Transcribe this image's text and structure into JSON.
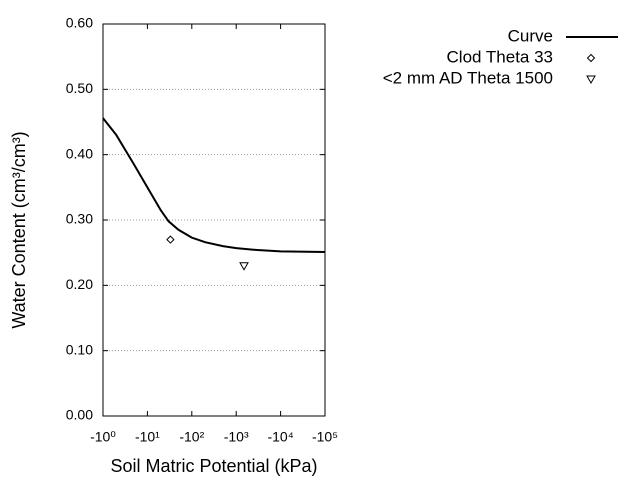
{
  "chart_data": {
    "type": "line",
    "xlabel": "Soil Matric Potential (kPa)",
    "ylabel": "Water Content (cm³/cm³)",
    "xscale": "log",
    "xlim": [
      1,
      100000
    ],
    "ylim": [
      0,
      0.6
    ],
    "xticks": [
      {
        "value": 1,
        "label": "-10⁰"
      },
      {
        "value": 10,
        "label": "-10¹"
      },
      {
        "value": 100,
        "label": "-10²"
      },
      {
        "value": 1000,
        "label": "-10³"
      },
      {
        "value": 10000,
        "label": "-10⁴"
      },
      {
        "value": 100000,
        "label": "-10⁵"
      }
    ],
    "yticks": [
      {
        "value": 0,
        "label": "0.00"
      },
      {
        "value": 0.1,
        "label": "0.10"
      },
      {
        "value": 0.2,
        "label": "0.20"
      },
      {
        "value": 0.3,
        "label": "0.30"
      },
      {
        "value": 0.4,
        "label": "0.40"
      },
      {
        "value": 0.5,
        "label": "0.50"
      },
      {
        "value": 0.6,
        "label": "0.60"
      }
    ],
    "grid": true,
    "legend": "top-right",
    "series": [
      {
        "name": "Curve",
        "color": "#000000",
        "marker": "line",
        "x": [
          1,
          2,
          3,
          5,
          10,
          20,
          30,
          50,
          100,
          200,
          500,
          1000,
          3000,
          10000,
          100000
        ],
        "y": [
          0.456,
          0.43,
          0.41,
          0.385,
          0.35,
          0.315,
          0.298,
          0.285,
          0.273,
          0.266,
          0.26,
          0.257,
          0.254,
          0.252,
          0.251
        ]
      },
      {
        "name": "Clod Theta 33",
        "color": "#000000",
        "marker": "diamond",
        "x": [
          33
        ],
        "y": [
          0.27
        ]
      },
      {
        "name": "<2 mm AD Theta 1500",
        "color": "#000000",
        "marker": "triangle-down",
        "x": [
          1500
        ],
        "y": [
          0.23
        ]
      }
    ]
  }
}
